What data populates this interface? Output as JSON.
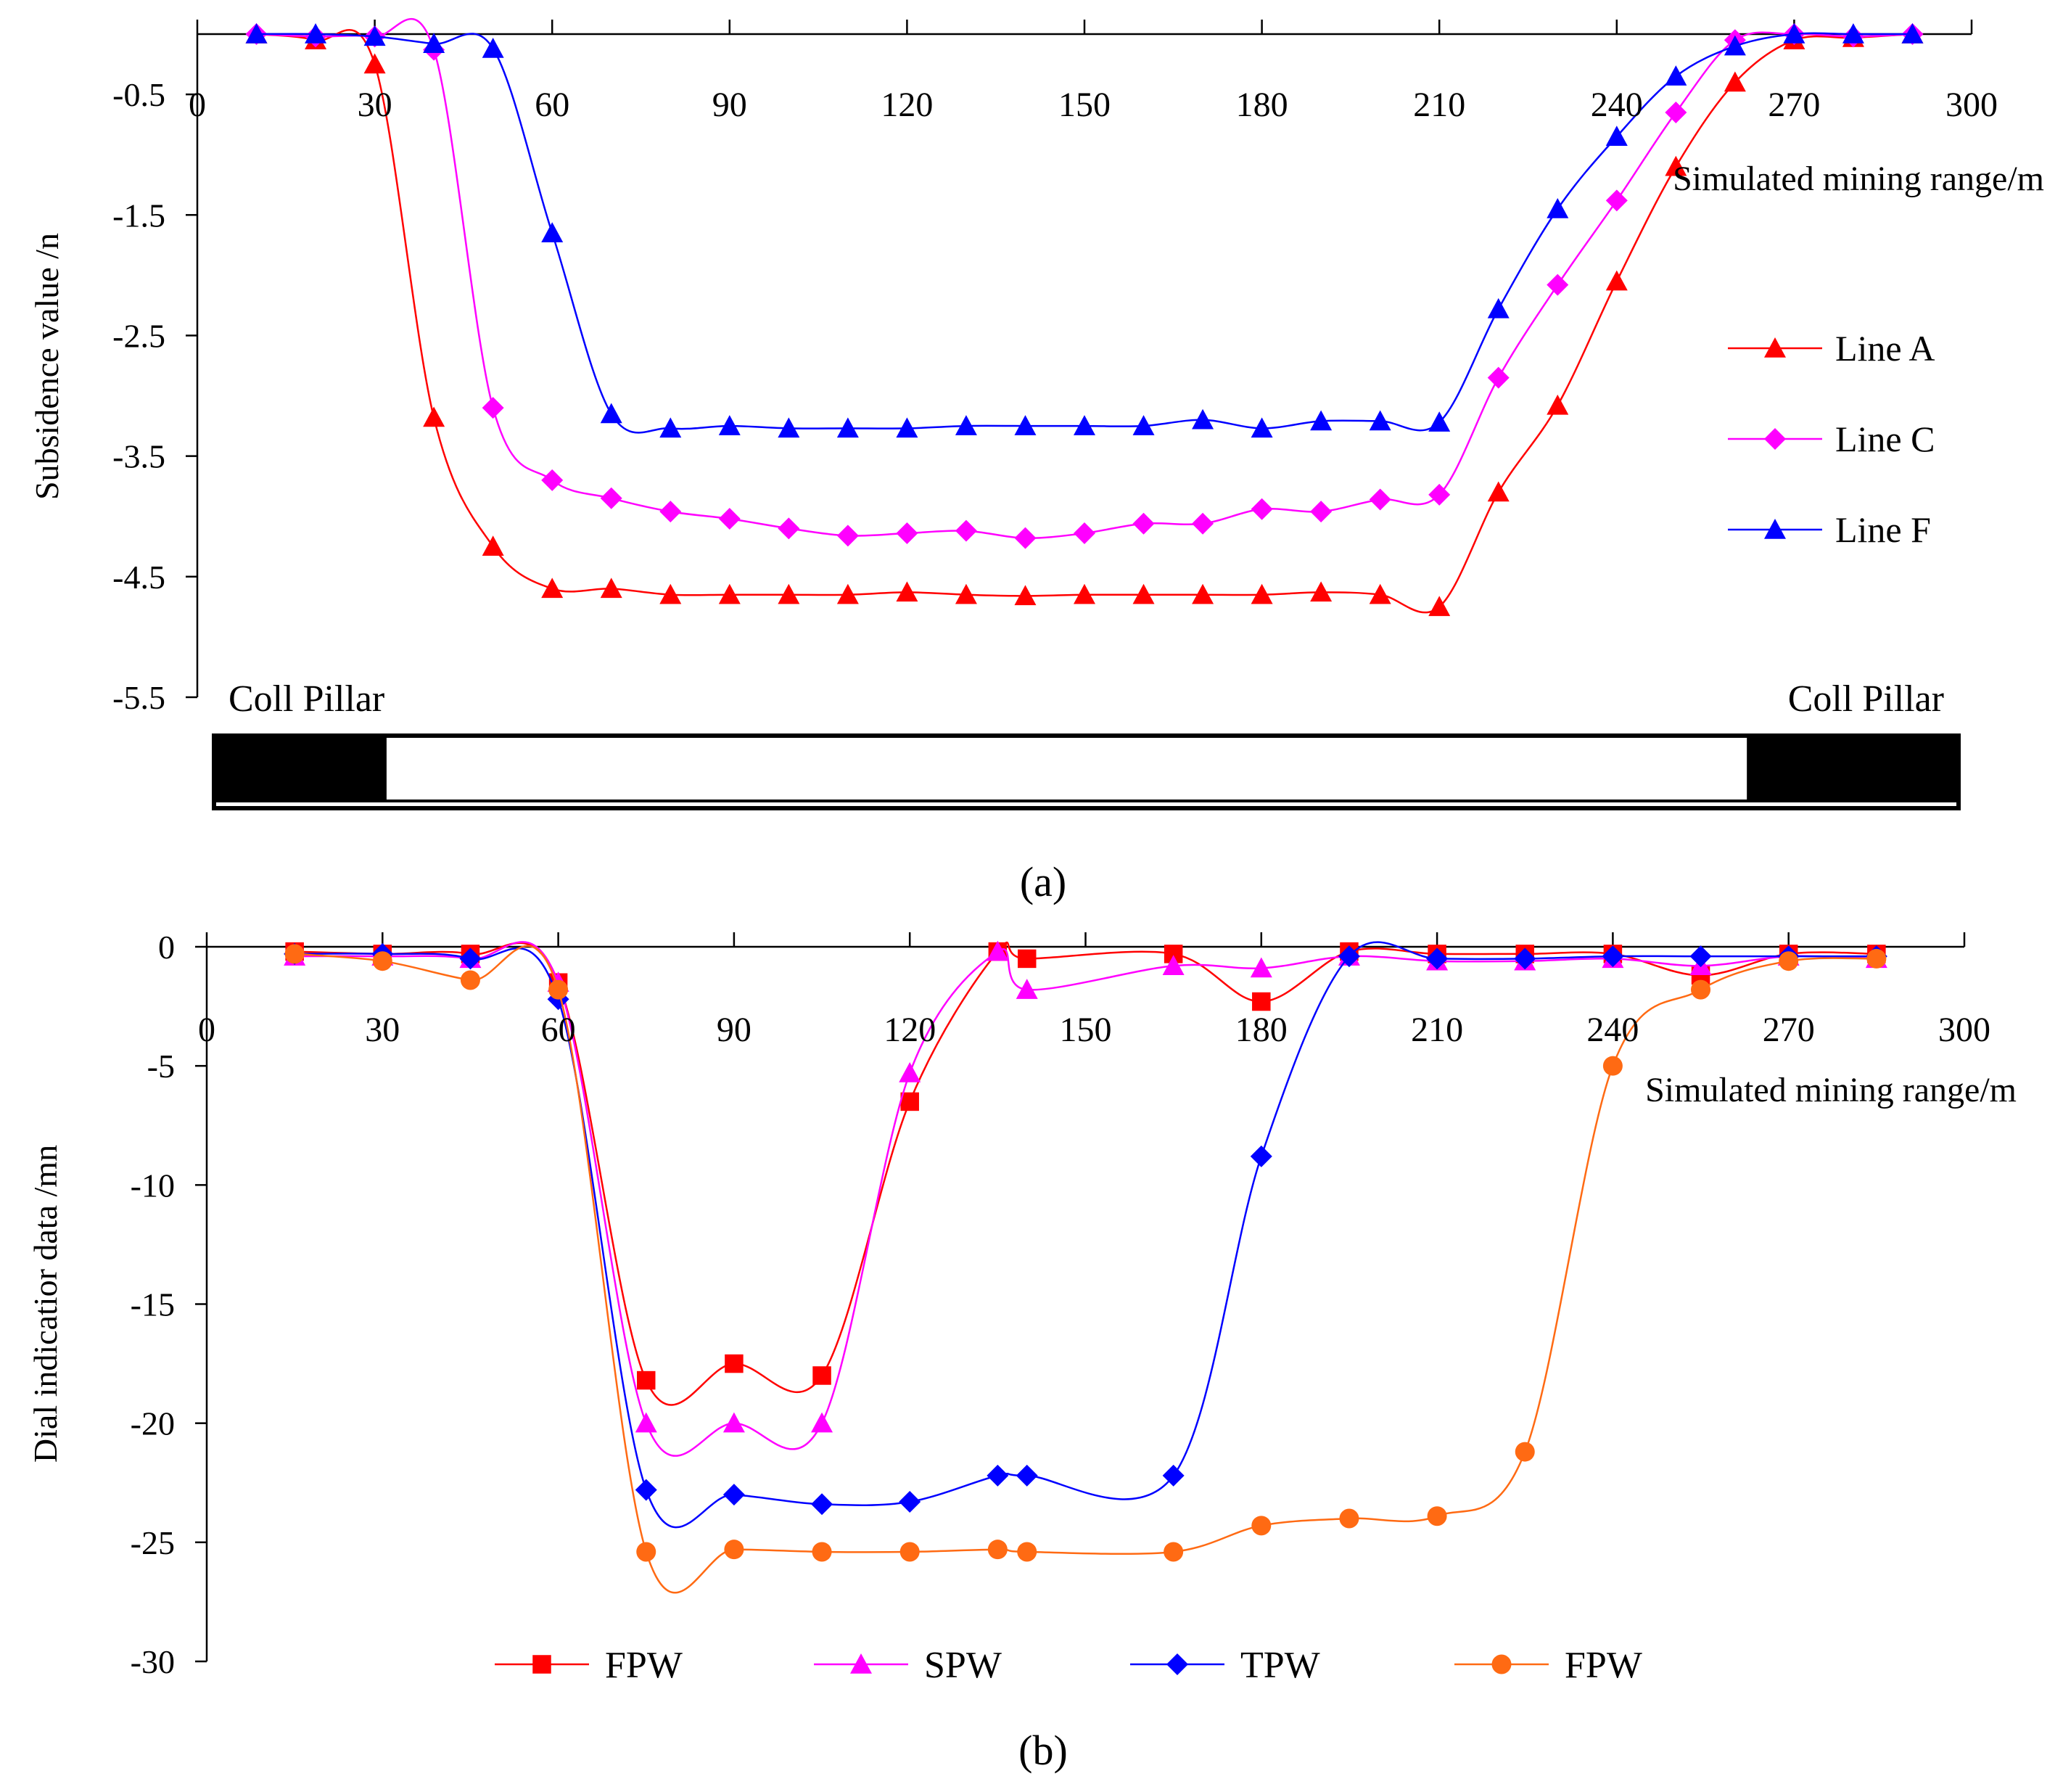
{
  "chart_data": [
    {
      "type": "line",
      "panel_label": "(a)",
      "title": "",
      "xlabel": "Simulated mining range/m",
      "ylabel": "Subsidence value /n",
      "xlim": [
        0,
        300
      ],
      "ylim": [
        -5.5,
        0
      ],
      "xticks": [
        0,
        30,
        60,
        90,
        120,
        150,
        180,
        210,
        240,
        270,
        300
      ],
      "yticks": [
        -0.5,
        -1.5,
        -2.5,
        -3.5,
        -4.5,
        -5.5
      ],
      "ytick_labels": [
        "-0.5",
        "-1.5",
        "-2.5",
        "-3.5",
        "-4.5",
        "-5.5"
      ],
      "grid": false,
      "legend_position": "right",
      "annotations": {
        "left": "Coll Pillar",
        "right": "Coll Pillar"
      },
      "pillar_diagram": {
        "left_pillar_x": [
          0,
          32
        ],
        "right_pillar_x": [
          262,
          295
        ]
      },
      "x": [
        10,
        20,
        30,
        40,
        50,
        60,
        70,
        80,
        90,
        100,
        110,
        120,
        130,
        140,
        150,
        160,
        170,
        180,
        190,
        200,
        210,
        220,
        230,
        240,
        250,
        260,
        270,
        280,
        290
      ],
      "series": [
        {
          "name": "Line A",
          "color": "#ff0000",
          "marker": "triangle",
          "values": [
            0,
            -0.05,
            -0.25,
            -3.18,
            -4.25,
            -4.6,
            -4.6,
            -4.65,
            -4.65,
            -4.65,
            -4.65,
            -4.63,
            -4.65,
            -4.66,
            -4.65,
            -4.65,
            -4.65,
            -4.65,
            -4.63,
            -4.65,
            -4.75,
            -3.8,
            -3.08,
            -2.05,
            -1.1,
            -0.4,
            -0.05,
            -0.03,
            0
          ]
        },
        {
          "name": "Line C",
          "color": "#ff00ff",
          "marker": "diamond",
          "values": [
            0,
            -0.02,
            -0.02,
            -0.13,
            -3.1,
            -3.7,
            -3.85,
            -3.96,
            -4.02,
            -4.1,
            -4.16,
            -4.14,
            -4.12,
            -4.18,
            -4.14,
            -4.06,
            -4.06,
            -3.94,
            -3.96,
            -3.86,
            -3.82,
            -2.85,
            -2.08,
            -1.38,
            -0.65,
            -0.05,
            0,
            -0.02,
            0
          ]
        },
        {
          "name": "Line F",
          "color": "#0000ff",
          "marker": "triangle",
          "values": [
            0,
            0,
            -0.02,
            -0.08,
            -0.12,
            -1.65,
            -3.15,
            -3.27,
            -3.25,
            -3.27,
            -3.27,
            -3.27,
            -3.25,
            -3.25,
            -3.25,
            -3.25,
            -3.2,
            -3.27,
            -3.21,
            -3.21,
            -3.22,
            -2.28,
            -1.45,
            -0.85,
            -0.35,
            -0.1,
            0,
            0,
            0
          ]
        }
      ]
    },
    {
      "type": "line",
      "panel_label": "(b)",
      "title": "",
      "xlabel": "Simulated mining range/m",
      "ylabel": "Dial indicatior data /mn",
      "xlim": [
        0,
        300
      ],
      "ylim": [
        -30,
        0
      ],
      "xticks": [
        0,
        30,
        60,
        90,
        120,
        150,
        180,
        210,
        240,
        270,
        300
      ],
      "yticks": [
        0,
        -5,
        -10,
        -15,
        -20,
        -25,
        -30
      ],
      "grid": false,
      "legend_position": "bottom",
      "x": [
        15,
        30,
        45,
        60,
        75,
        90,
        105,
        120,
        135,
        140,
        165,
        180,
        195,
        210,
        225,
        240,
        255,
        270,
        285
      ],
      "series": [
        {
          "name": "FPW",
          "color": "#ff0000",
          "marker": "square",
          "values": [
            -0.2,
            -0.3,
            -0.3,
            -1.5,
            -18.2,
            -17.5,
            -18.0,
            -6.5,
            -0.2,
            -0.5,
            -0.3,
            -2.3,
            -0.2,
            -0.3,
            -0.3,
            -0.3,
            -1.2,
            -0.3,
            -0.3
          ]
        },
        {
          "name": "SPW",
          "color": "#ff00ff",
          "marker": "triangle",
          "values": [
            -0.4,
            -0.4,
            -0.5,
            -1.5,
            -20.0,
            -20.0,
            -20.0,
            -5.3,
            -0.2,
            -1.8,
            -0.8,
            -0.9,
            -0.4,
            -0.6,
            -0.6,
            -0.5,
            -0.8,
            -0.4,
            -0.5
          ]
        },
        {
          "name": "TPW",
          "color": "#0000ff",
          "marker": "diamond",
          "values": [
            -0.3,
            -0.3,
            -0.5,
            -2.2,
            -22.8,
            -23.0,
            -23.4,
            -23.3,
            -22.2,
            -22.2,
            -22.2,
            -8.8,
            -0.4,
            -0.5,
            -0.5,
            -0.4,
            -0.4,
            -0.4,
            -0.4
          ]
        },
        {
          "name": "FPW",
          "color": "#ff6a13",
          "marker": "circle",
          "values": [
            -0.3,
            -0.6,
            -1.4,
            -1.8,
            -25.4,
            -25.3,
            -25.4,
            -25.4,
            -25.3,
            -25.4,
            -25.4,
            -24.3,
            -24.0,
            -23.9,
            -21.2,
            -5.0,
            -1.8,
            -0.6,
            -0.5
          ]
        }
      ]
    }
  ]
}
